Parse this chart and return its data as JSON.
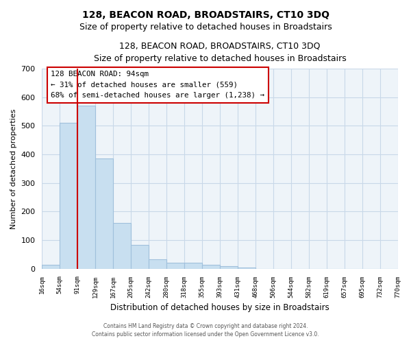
{
  "title": "128, BEACON ROAD, BROADSTAIRS, CT10 3DQ",
  "subtitle": "Size of property relative to detached houses in Broadstairs",
  "xlabel": "Distribution of detached houses by size in Broadstairs",
  "ylabel": "Number of detached properties",
  "bar_heights": [
    13,
    510,
    570,
    385,
    160,
    83,
    33,
    22,
    22,
    13,
    10,
    3,
    0,
    0,
    0,
    0,
    0,
    0,
    0,
    0
  ],
  "bin_labels": [
    "16sqm",
    "54sqm",
    "91sqm",
    "129sqm",
    "167sqm",
    "205sqm",
    "242sqm",
    "280sqm",
    "318sqm",
    "355sqm",
    "393sqm",
    "431sqm",
    "468sqm",
    "506sqm",
    "544sqm",
    "582sqm",
    "619sqm",
    "657sqm",
    "695sqm",
    "732sqm",
    "770sqm"
  ],
  "bar_color": "#c8dff0",
  "bar_edge_color": "#a0c0dc",
  "grid_color": "#c8d8e8",
  "plot_bg_color": "#eef4f9",
  "fig_bg_color": "#ffffff",
  "vline_color": "#cc0000",
  "vline_x": 2.0,
  "annotation_text_line1": "128 BEACON ROAD: 94sqm",
  "annotation_text_line2": "← 31% of detached houses are smaller (559)",
  "annotation_text_line3": "68% of semi-detached houses are larger (1,238) →",
  "box_edge_color": "#cc0000",
  "ylim": [
    0,
    700
  ],
  "yticks": [
    0,
    100,
    200,
    300,
    400,
    500,
    600,
    700
  ],
  "footer_line1": "Contains HM Land Registry data © Crown copyright and database right 2024.",
  "footer_line2": "Contains public sector information licensed under the Open Government Licence v3.0."
}
